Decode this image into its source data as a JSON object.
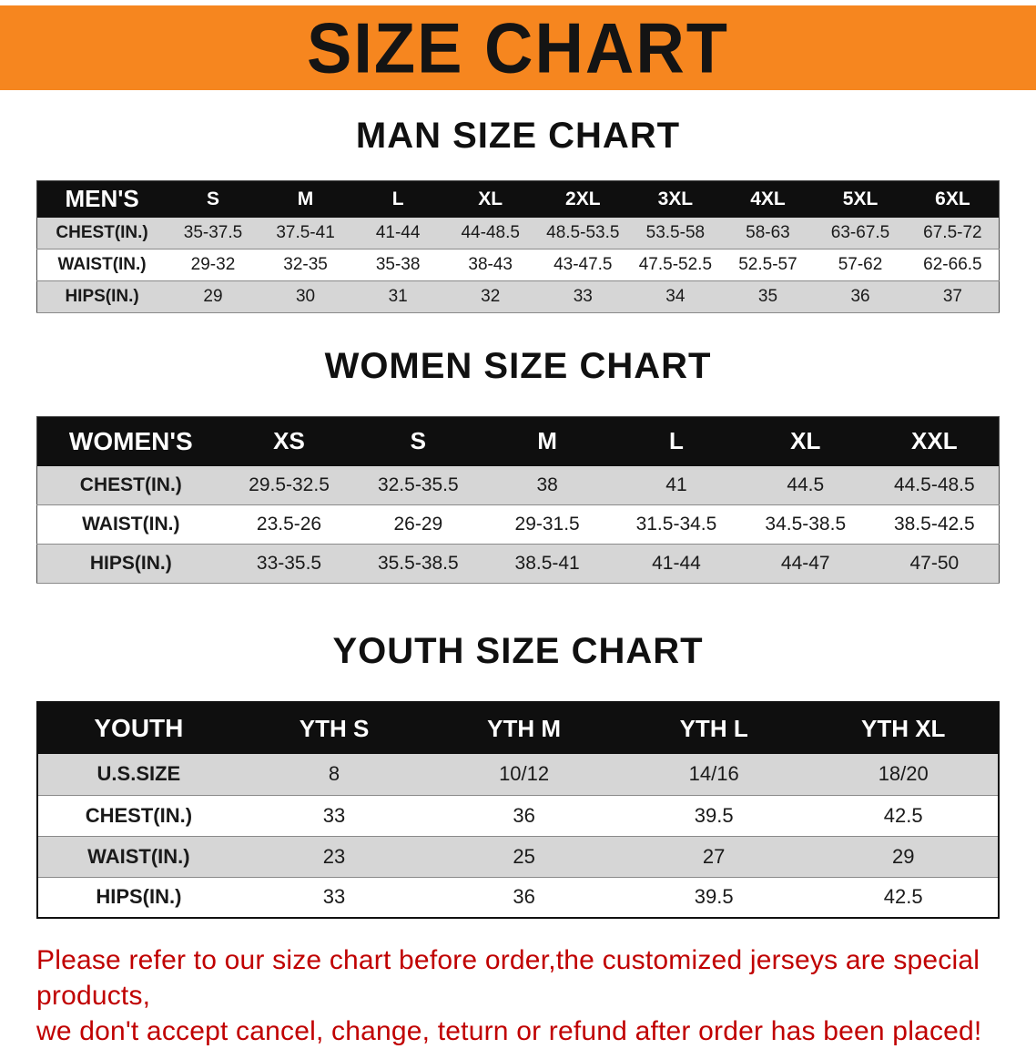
{
  "banner": {
    "title": "SIZE CHART"
  },
  "sections": [
    {
      "heading": "MAN SIZE CHART",
      "table": {
        "header": [
          "MEN'S",
          "S",
          "M",
          "L",
          "XL",
          "2XL",
          "3XL",
          "4XL",
          "5XL",
          "6XL"
        ],
        "rows": [
          [
            "CHEST(IN.)",
            "35-37.5",
            "37.5-41",
            "41-44",
            "44-48.5",
            "48.5-53.5",
            "53.5-58",
            "58-63",
            "63-67.5",
            "67.5-72"
          ],
          [
            "WAIST(IN.)",
            "29-32",
            "32-35",
            "35-38",
            "38-43",
            "43-47.5",
            "47.5-52.5",
            "52.5-57",
            "57-62",
            "62-66.5"
          ],
          [
            "HIPS(IN.)",
            "29",
            "30",
            "31",
            "32",
            "33",
            "34",
            "35",
            "36",
            "37"
          ]
        ]
      }
    },
    {
      "heading": "WOMEN SIZE CHART",
      "table": {
        "header": [
          "WOMEN'S",
          "XS",
          "S",
          "M",
          "L",
          "XL",
          "XXL"
        ],
        "rows": [
          [
            "CHEST(IN.)",
            "29.5-32.5",
            "32.5-35.5",
            "38",
            "41",
            "44.5",
            "44.5-48.5"
          ],
          [
            "WAIST(IN.)",
            "23.5-26",
            "26-29",
            "29-31.5",
            "31.5-34.5",
            "34.5-38.5",
            "38.5-42.5"
          ],
          [
            "HIPS(IN.)",
            "33-35.5",
            "35.5-38.5",
            "38.5-41",
            "41-44",
            "44-47",
            "47-50"
          ]
        ]
      }
    },
    {
      "heading": "YOUTH SIZE CHART",
      "table": {
        "header": [
          "YOUTH",
          "YTH S",
          "YTH M",
          "YTH L",
          "YTH XL"
        ],
        "rows": [
          [
            "U.S.SIZE",
            "8",
            "10/12",
            "14/16",
            "18/20"
          ],
          [
            "CHEST(IN.)",
            "33",
            "36",
            "39.5",
            "42.5"
          ],
          [
            "WAIST(IN.)",
            "23",
            "25",
            "27",
            "29"
          ],
          [
            "HIPS(IN.)",
            "33",
            "36",
            "39.5",
            "42.5"
          ]
        ]
      }
    }
  ],
  "disclaimer": {
    "line1": "Please refer to our size chart before order,the customized jerseys are special products,",
    "line2": "we don't accept cancel, change, teturn or refund after order has been placed!"
  },
  "colors": {
    "banner_bg": "#F6861F",
    "header_bg": "#0f0f0f",
    "row_alt": "#d6d6d6",
    "disclaimer_text": "#C00000"
  }
}
